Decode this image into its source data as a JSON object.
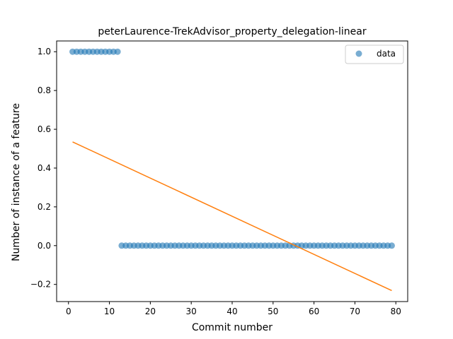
{
  "chart_data": {
    "type": "scatter",
    "title": "peterLaurence-TrekAdvisor_property_delegation-linear",
    "xlabel": "Commit number",
    "ylabel": "Number of instance of a feature",
    "xlim": [
      -2.9,
      82.9
    ],
    "ylim": [
      -0.2885,
      1.0555
    ],
    "xticks": [
      0,
      10,
      20,
      30,
      40,
      50,
      60,
      70,
      80
    ],
    "yticks": [
      -0.2,
      0.0,
      0.2,
      0.4,
      0.6,
      0.8,
      1.0
    ],
    "xtick_labels": [
      "0",
      "10",
      "20",
      "30",
      "40",
      "50",
      "60",
      "70",
      "80"
    ],
    "ytick_labels": [
      "−0.2",
      "0.0",
      "0.2",
      "0.4",
      "0.6",
      "0.8",
      "1.0"
    ],
    "grid": false,
    "legend_position": "top-right",
    "series": [
      {
        "name": "data",
        "kind": "scatter",
        "color": "#1f77b4",
        "x": [
          1,
          2,
          3,
          4,
          5,
          6,
          7,
          8,
          9,
          10,
          11,
          12,
          13,
          14,
          15,
          16,
          17,
          18,
          19,
          20,
          21,
          22,
          23,
          24,
          25,
          26,
          27,
          28,
          29,
          30,
          31,
          32,
          33,
          34,
          35,
          36,
          37,
          38,
          39,
          40,
          41,
          42,
          43,
          44,
          45,
          46,
          47,
          48,
          49,
          50,
          51,
          52,
          53,
          54,
          55,
          56,
          57,
          58,
          59,
          60,
          61,
          62,
          63,
          64,
          65,
          66,
          67,
          68,
          69,
          70,
          71,
          72,
          73,
          74,
          75,
          76,
          77,
          78,
          79
        ],
        "y": [
          1,
          1,
          1,
          1,
          1,
          1,
          1,
          1,
          1,
          1,
          1,
          1,
          0,
          0,
          0,
          0,
          0,
          0,
          0,
          0,
          0,
          0,
          0,
          0,
          0,
          0,
          0,
          0,
          0,
          0,
          0,
          0,
          0,
          0,
          0,
          0,
          0,
          0,
          0,
          0,
          0,
          0,
          0,
          0,
          0,
          0,
          0,
          0,
          0,
          0,
          0,
          0,
          0,
          0,
          0,
          0,
          0,
          0,
          0,
          0,
          0,
          0,
          0,
          0,
          0,
          0,
          0,
          0,
          0,
          0,
          0,
          0,
          0,
          0,
          0,
          0,
          0,
          0,
          0
        ]
      },
      {
        "kind": "line",
        "color": "#ff7f0e",
        "x": [
          1,
          79
        ],
        "y": [
          0.535,
          -0.232
        ]
      }
    ]
  }
}
